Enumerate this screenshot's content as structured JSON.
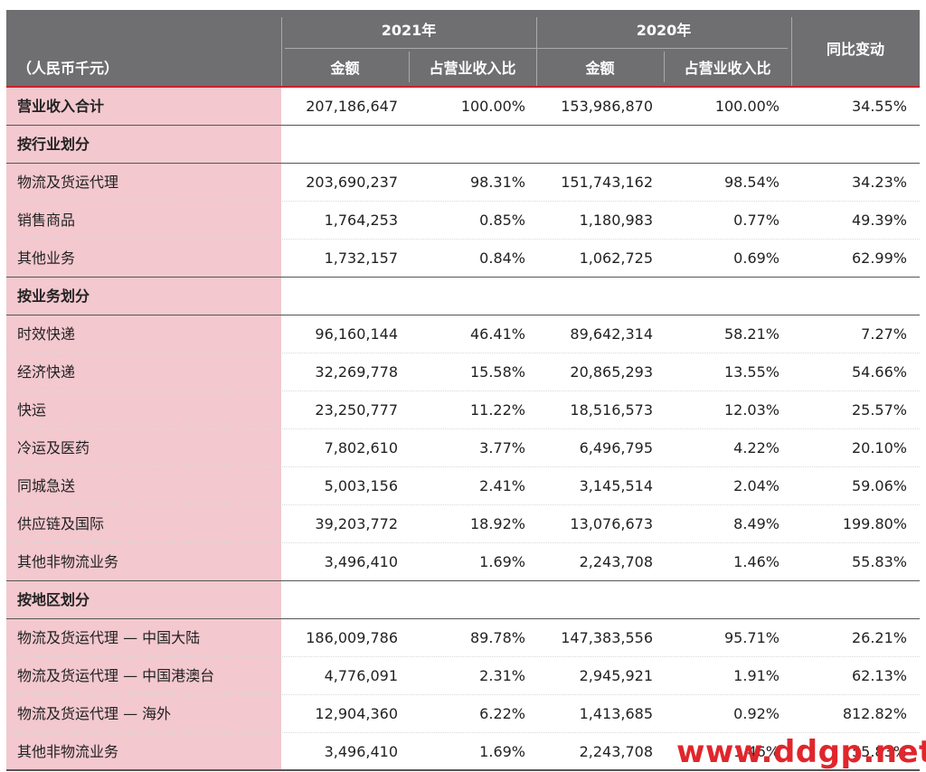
{
  "header": {
    "unit_label": "（人民币千元）",
    "year_2021": "2021年",
    "year_2020": "2020年",
    "amount": "金额",
    "ratio": "占营业收入比",
    "yoy": "同比变动"
  },
  "rows": [
    {
      "label": "营业收入合计",
      "a2021": "207,186,647",
      "r2021": "100.00%",
      "a2020": "153,986,870",
      "r2020": "100.00%",
      "yoy": "34.55%"
    },
    {
      "label": "按行业划分",
      "a2021": "",
      "r2021": "",
      "a2020": "",
      "r2020": "",
      "yoy": ""
    },
    {
      "label": "物流及货运代理",
      "a2021": "203,690,237",
      "r2021": "98.31%",
      "a2020": "151,743,162",
      "r2020": "98.54%",
      "yoy": "34.23%"
    },
    {
      "label": "销售商品",
      "a2021": "1,764,253",
      "r2021": "0.85%",
      "a2020": "1,180,983",
      "r2020": "0.77%",
      "yoy": "49.39%"
    },
    {
      "label": "其他业务",
      "a2021": "1,732,157",
      "r2021": "0.84%",
      "a2020": "1,062,725",
      "r2020": "0.69%",
      "yoy": "62.99%"
    },
    {
      "label": "按业务划分",
      "a2021": "",
      "r2021": "",
      "a2020": "",
      "r2020": "",
      "yoy": ""
    },
    {
      "label": "时效快递",
      "a2021": "96,160,144",
      "r2021": "46.41%",
      "a2020": "89,642,314",
      "r2020": "58.21%",
      "yoy": "7.27%"
    },
    {
      "label": "经济快递",
      "a2021": "32,269,778",
      "r2021": "15.58%",
      "a2020": "20,865,293",
      "r2020": "13.55%",
      "yoy": "54.66%"
    },
    {
      "label": "快运",
      "a2021": "23,250,777",
      "r2021": "11.22%",
      "a2020": "18,516,573",
      "r2020": "12.03%",
      "yoy": "25.57%"
    },
    {
      "label": "冷运及医药",
      "a2021": "7,802,610",
      "r2021": "3.77%",
      "a2020": "6,496,795",
      "r2020": "4.22%",
      "yoy": "20.10%"
    },
    {
      "label": "同城急送",
      "a2021": "5,003,156",
      "r2021": "2.41%",
      "a2020": "3,145,514",
      "r2020": "2.04%",
      "yoy": "59.06%"
    },
    {
      "label": "供应链及国际",
      "a2021": "39,203,772",
      "r2021": "18.92%",
      "a2020": "13,076,673",
      "r2020": "8.49%",
      "yoy": "199.80%"
    },
    {
      "label": "其他非物流业务",
      "a2021": "3,496,410",
      "r2021": "1.69%",
      "a2020": "2,243,708",
      "r2020": "1.46%",
      "yoy": "55.83%"
    },
    {
      "label": "按地区划分",
      "a2021": "",
      "r2021": "",
      "a2020": "",
      "r2020": "",
      "yoy": ""
    },
    {
      "label": "物流及货运代理 — 中国大陆",
      "a2021": "186,009,786",
      "r2021": "89.78%",
      "a2020": "147,383,556",
      "r2020": "95.71%",
      "yoy": "26.21%"
    },
    {
      "label": "物流及货运代理 — 中国港澳台",
      "a2021": "4,776,091",
      "r2021": "2.31%",
      "a2020": "2,945,921",
      "r2020": "1.91%",
      "yoy": "62.13%"
    },
    {
      "label": "物流及货运代理 — 海外",
      "a2021": "12,904,360",
      "r2021": "6.22%",
      "a2020": "1,413,685",
      "r2020": "0.92%",
      "yoy": "812.82%"
    },
    {
      "label": "其他非物流业务",
      "a2021": "3,496,410",
      "r2021": "1.69%",
      "a2020": "2,243,708",
      "r2020": "1.46%",
      "yoy": "55.83%"
    }
  ],
  "watermark": "www.ddgp.net",
  "colors": {
    "header_bg": "#6f6f71",
    "label_bg": "#f3c8cf",
    "accent_red": "#c8232c",
    "watermark": "#e0262c"
  }
}
